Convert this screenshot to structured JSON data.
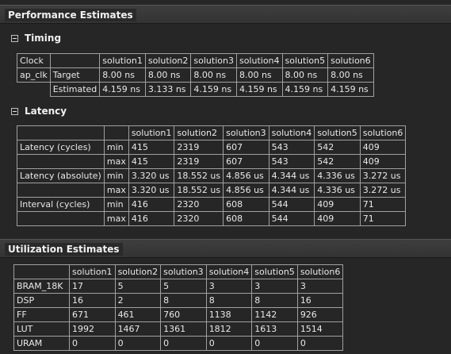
{
  "performance": {
    "title": "Performance Estimates",
    "timing": {
      "title": "Timing",
      "clock_label": "Clock",
      "solutions": [
        "solution1",
        "solution2",
        "solution3",
        "solution4",
        "solution5",
        "solution6"
      ],
      "clock_name": "ap_clk",
      "rows": [
        {
          "label": "Target",
          "values": [
            "8.00 ns",
            "8.00 ns",
            "8.00 ns",
            "8.00 ns",
            "8.00 ns",
            "8.00 ns"
          ]
        },
        {
          "label": "Estimated",
          "values": [
            "4.159 ns",
            "3.133 ns",
            "4.159 ns",
            "4.159 ns",
            "4.159 ns",
            "4.159 ns"
          ]
        }
      ]
    },
    "latency": {
      "title": "Latency",
      "solutions": [
        "solution1",
        "solution2",
        "solution3",
        "solution4",
        "solution5",
        "solution6"
      ],
      "groups": [
        {
          "label": "Latency (cycles)",
          "rows": [
            {
              "kind": "min",
              "values": [
                "415",
                "2319",
                "607",
                "543",
                "542",
                "409"
              ]
            },
            {
              "kind": "max",
              "values": [
                "415",
                "2319",
                "607",
                "543",
                "542",
                "409"
              ]
            }
          ]
        },
        {
          "label": "Latency (absolute)",
          "rows": [
            {
              "kind": "min",
              "values": [
                "3.320 us",
                "18.552 us",
                "4.856 us",
                "4.344 us",
                "4.336 us",
                "3.272 us"
              ]
            },
            {
              "kind": "max",
              "values": [
                "3.320 us",
                "18.552 us",
                "4.856 us",
                "4.344 us",
                "4.336 us",
                "3.272 us"
              ]
            }
          ]
        },
        {
          "label": "Interval (cycles)",
          "rows": [
            {
              "kind": "min",
              "values": [
                "416",
                "2320",
                "608",
                "544",
                "409",
                "71"
              ]
            },
            {
              "kind": "max",
              "values": [
                "416",
                "2320",
                "608",
                "544",
                "409",
                "71"
              ]
            }
          ]
        }
      ]
    }
  },
  "utilization": {
    "title": "Utilization Estimates",
    "solutions": [
      "solution1",
      "solution2",
      "solution3",
      "solution4",
      "solution5",
      "solution6"
    ],
    "rows": [
      {
        "label": "BRAM_18K",
        "values": [
          "17",
          "5",
          "5",
          "3",
          "3",
          "3"
        ]
      },
      {
        "label": "DSP",
        "values": [
          "16",
          "2",
          "8",
          "8",
          "8",
          "16"
        ]
      },
      {
        "label": "FF",
        "values": [
          "671",
          "461",
          "760",
          "1138",
          "1142",
          "926"
        ]
      },
      {
        "label": "LUT",
        "values": [
          "1992",
          "1467",
          "1361",
          "1812",
          "1613",
          "1514"
        ]
      },
      {
        "label": "URAM",
        "values": [
          "0",
          "0",
          "0",
          "0",
          "0",
          "0"
        ]
      }
    ]
  }
}
